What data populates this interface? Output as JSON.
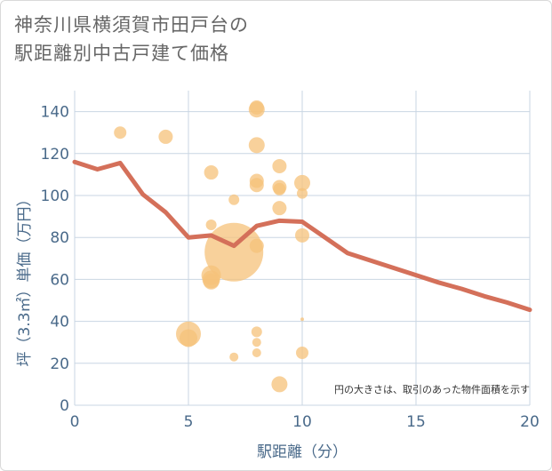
{
  "title_lines": [
    "神奈川県横須賀市田戸台の",
    "駅距離別中古戸建て価格"
  ],
  "chart_data": {
    "type": "scatter",
    "xlabel": "駅距離（分）",
    "ylabel": "坪（3.3㎡）単価（万円）",
    "xlim": [
      0,
      20
    ],
    "ylim": [
      0,
      150
    ],
    "xticks": [
      0,
      5,
      10,
      15,
      20
    ],
    "yticks": [
      0,
      20,
      40,
      60,
      80,
      100,
      120,
      140
    ],
    "grid": true,
    "annotation": "円の大きさは、取引のあった物件面積を示す",
    "colors": {
      "bubble": "#f5c27a",
      "line": "#d4705a",
      "grid": "#c9d6e3",
      "tick": "#4a6a8a"
    },
    "bubbles": [
      {
        "x": 2,
        "y": 130,
        "size": 7
      },
      {
        "x": 4,
        "y": 128,
        "size": 8
      },
      {
        "x": 6,
        "y": 111,
        "size": 8
      },
      {
        "x": 6,
        "y": 86,
        "size": 6
      },
      {
        "x": 6,
        "y": 62,
        "size": 11
      },
      {
        "x": 6,
        "y": 60,
        "size": 10
      },
      {
        "x": 6,
        "y": 59,
        "size": 9
      },
      {
        "x": 5,
        "y": 34,
        "size": 14
      },
      {
        "x": 5,
        "y": 32,
        "size": 10
      },
      {
        "x": 7,
        "y": 98,
        "size": 6
      },
      {
        "x": 7,
        "y": 73,
        "size": 33
      },
      {
        "x": 7,
        "y": 23,
        "size": 5
      },
      {
        "x": 8,
        "y": 142,
        "size": 8
      },
      {
        "x": 8,
        "y": 141,
        "size": 9
      },
      {
        "x": 8,
        "y": 124,
        "size": 9
      },
      {
        "x": 8,
        "y": 107,
        "size": 8
      },
      {
        "x": 8,
        "y": 105,
        "size": 8
      },
      {
        "x": 8,
        "y": 76,
        "size": 8
      },
      {
        "x": 8,
        "y": 35,
        "size": 6
      },
      {
        "x": 8,
        "y": 30,
        "size": 5
      },
      {
        "x": 8,
        "y": 25,
        "size": 5
      },
      {
        "x": 9,
        "y": 114,
        "size": 8
      },
      {
        "x": 9,
        "y": 104,
        "size": 8
      },
      {
        "x": 9,
        "y": 103,
        "size": 7
      },
      {
        "x": 9,
        "y": 94,
        "size": 8
      },
      {
        "x": 9,
        "y": 10,
        "size": 9
      },
      {
        "x": 10,
        "y": 106,
        "size": 9
      },
      {
        "x": 10,
        "y": 101,
        "size": 6
      },
      {
        "x": 10,
        "y": 81,
        "size": 8
      },
      {
        "x": 10,
        "y": 41,
        "size": 2
      },
      {
        "x": 10,
        "y": 25,
        "size": 7
      }
    ],
    "series": [
      {
        "x": [
          0,
          1,
          2,
          3,
          4,
          5,
          6,
          7,
          8,
          9,
          10,
          11,
          12,
          13,
          14,
          15,
          16,
          17,
          18,
          19,
          20
        ],
        "values": [
          116,
          112.5,
          115.5,
          100.5,
          92,
          80,
          81,
          76,
          85.5,
          88,
          87.5,
          80,
          72.5,
          69,
          65.5,
          62,
          58.5,
          55.5,
          52,
          49,
          45.5
        ]
      }
    ]
  }
}
